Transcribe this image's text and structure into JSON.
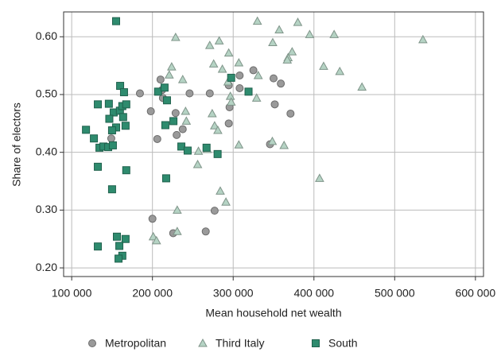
{
  "chart_data": {
    "type": "scatter",
    "xlabel": "Mean household net wealth",
    "ylabel": "Share of electors",
    "xlim": [
      90000,
      610000
    ],
    "ylim": [
      0.185,
      0.643
    ],
    "xticks": [
      {
        "value": 100000,
        "label": "100 000"
      },
      {
        "value": 200000,
        "label": "200 000"
      },
      {
        "value": 300000,
        "label": "300 000"
      },
      {
        "value": 400000,
        "label": "400 000"
      },
      {
        "value": 500000,
        "label": "500 000"
      },
      {
        "value": 600000,
        "label": "600 000"
      }
    ],
    "yticks": [
      {
        "value": 0.2,
        "label": "0.20"
      },
      {
        "value": 0.3,
        "label": "0.30"
      },
      {
        "value": 0.4,
        "label": "0.40"
      },
      {
        "value": 0.5,
        "label": "0.50"
      },
      {
        "value": 0.6,
        "label": "0.60"
      }
    ],
    "grid": true,
    "legend": "bottom",
    "series": [
      {
        "name": "Metropolitan",
        "marker": "circle",
        "color": "#9a9a9a",
        "x": [
          184500,
          198000,
          206000,
          210000,
          212000,
          213000,
          228700,
          230000,
          237500,
          246000,
          271000,
          200000,
          225700,
          266000,
          277000,
          294500,
          295500,
          294500,
          308000,
          308000,
          325000,
          350000,
          351500,
          359000,
          371000,
          345600,
          149000
        ],
        "values": [
          0.502,
          0.471,
          0.423,
          0.526,
          0.508,
          0.494,
          0.468,
          0.43,
          0.44,
          0.502,
          0.502,
          0.285,
          0.26,
          0.263,
          0.299,
          0.45,
          0.478,
          0.516,
          0.533,
          0.511,
          0.542,
          0.528,
          0.483,
          0.519,
          0.467,
          0.414,
          0.424
        ]
      },
      {
        "name": "Third Italy",
        "marker": "triangle",
        "color": "#b5d3c4",
        "x": [
          228700,
          223800,
          220800,
          237500,
          271000,
          282700,
          275800,
          286600,
          294500,
          293500,
          296500,
          297500,
          307000,
          330000,
          357000,
          380000,
          394700,
          425000,
          349000,
          368000,
          373000,
          367000,
          412000,
          432000,
          459500,
          535000,
          331000,
          329000,
          241000,
          242000,
          257000,
          256000,
          274000,
          277000,
          281000,
          307000,
          348500,
          363000,
          407000,
          268000,
          284000,
          291000,
          230700,
          230700,
          201000,
          205000
        ],
        "values": [
          0.599,
          0.548,
          0.534,
          0.526,
          0.585,
          0.593,
          0.553,
          0.544,
          0.572,
          0.522,
          0.497,
          0.487,
          0.555,
          0.627,
          0.612,
          0.625,
          0.604,
          0.604,
          0.59,
          0.564,
          0.574,
          0.56,
          0.549,
          0.54,
          0.513,
          0.595,
          0.533,
          0.494,
          0.471,
          0.454,
          0.402,
          0.379,
          0.467,
          0.446,
          0.438,
          0.413,
          0.419,
          0.412,
          0.355,
          0.405,
          0.333,
          0.314,
          0.3,
          0.263,
          0.254,
          0.247
        ]
      },
      {
        "name": "South",
        "marker": "square",
        "color": "#2e8b6e",
        "x": [
          155000,
          160000,
          164800,
          146000,
          132400,
          152000,
          146600,
          159700,
          162700,
          167600,
          163700,
          166700,
          155000,
          150000,
          117700,
          127500,
          134400,
          139300,
          145200,
          151000,
          132400,
          167600,
          150000,
          207000,
          215000,
          218000,
          216000,
          226000,
          235800,
          243600,
          217000,
          267000,
          280700,
          297500,
          319000,
          156000,
          166700,
          159000,
          162700,
          158000,
          132400
        ],
        "values": [
          0.627,
          0.515,
          0.504,
          0.484,
          0.483,
          0.469,
          0.458,
          0.472,
          0.48,
          0.483,
          0.461,
          0.446,
          0.443,
          0.438,
          0.439,
          0.424,
          0.408,
          0.41,
          0.409,
          0.412,
          0.375,
          0.369,
          0.336,
          0.505,
          0.512,
          0.49,
          0.447,
          0.454,
          0.41,
          0.403,
          0.355,
          0.408,
          0.397,
          0.529,
          0.505,
          0.254,
          0.25,
          0.238,
          0.221,
          0.216,
          0.237
        ]
      }
    ]
  }
}
